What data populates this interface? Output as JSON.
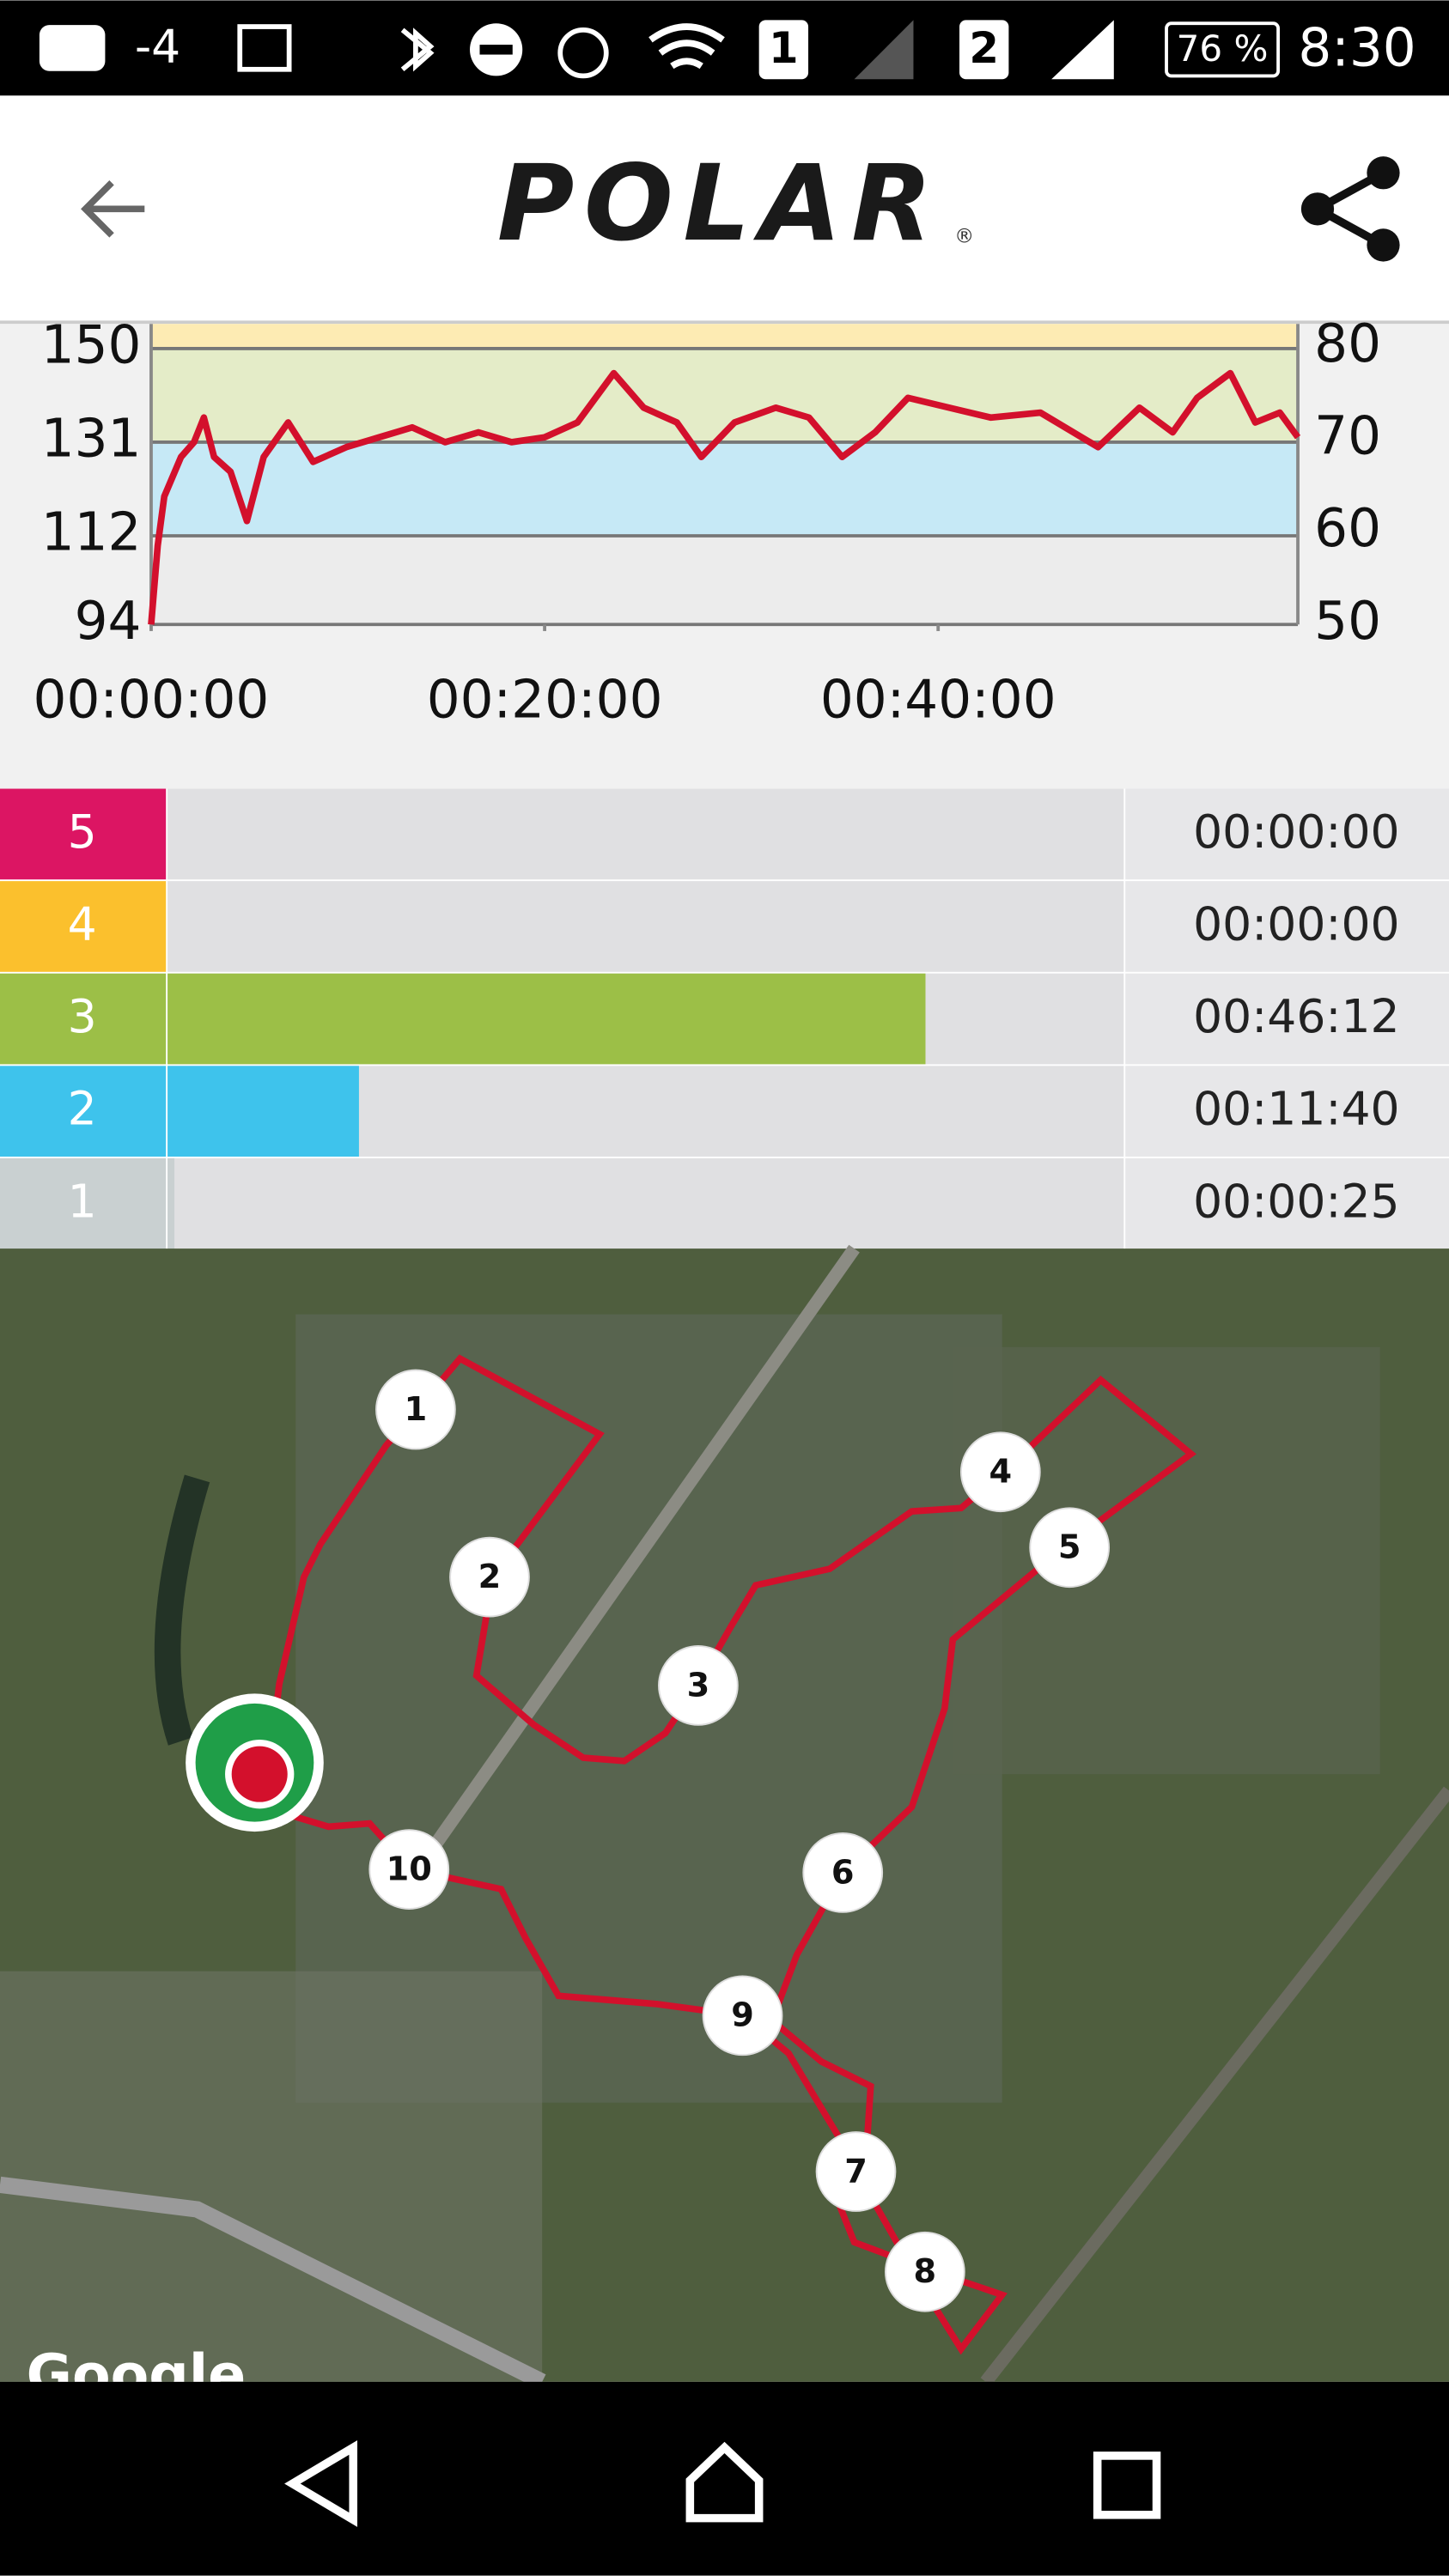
{
  "status_bar": {
    "temperature": "-4",
    "sim1": "1",
    "sim2": "2",
    "battery": "76 %",
    "time": "8:30"
  },
  "header": {
    "logo": "POLAR",
    "registered": "®"
  },
  "chart_data": [
    {
      "type": "line",
      "x": [
        0,
        20,
        40,
        91,
        131,
        161,
        192,
        242,
        292,
        343,
        418,
        494,
        595,
        696,
        796,
        897,
        998,
        1099,
        1200,
        1300,
        1411,
        1502,
        1603,
        1678,
        1779,
        1905,
        2006,
        2107,
        2208,
        2308,
        2434,
        2560,
        2712,
        2888,
        3014,
        3115,
        3190,
        3291,
        3367,
        3442,
        3497
      ],
      "values": [
        94,
        110,
        120,
        128,
        131,
        136,
        128,
        125,
        115,
        128,
        135,
        127,
        130,
        132,
        134,
        131,
        133,
        131,
        132,
        135,
        145,
        138,
        135,
        128,
        135,
        138,
        136,
        128,
        133,
        140,
        138,
        136,
        137,
        130,
        138,
        133,
        140,
        145,
        135,
        137,
        132
      ],
      "color": "#d3102c",
      "xlim": [
        0,
        3497
      ],
      "xticks": [
        {
          "value": 0,
          "label": "00:00:00"
        },
        {
          "value": 1200,
          "label": "00:20:00"
        },
        {
          "value": 2400,
          "label": "00:40:00"
        }
      ],
      "ylim": [
        94,
        155
      ],
      "yticks": [
        94,
        112,
        131,
        150
      ],
      "y2lim": [
        50,
        82.5
      ],
      "y2ticks": [
        50,
        60,
        70,
        80
      ],
      "band_colors": [
        "#ececec",
        "#c6e9f6",
        "#e4ecc8",
        "#fdebb3"
      ],
      "grid": true
    },
    {
      "type": "bar",
      "orientation": "horizontal",
      "categories": [
        "5",
        "4",
        "3",
        "2",
        "1"
      ],
      "values": [
        0,
        0,
        2772,
        700,
        25
      ],
      "value_labels": [
        "00:00:00",
        "00:00:00",
        "00:46:12",
        "00:11:40",
        "00:00:25"
      ],
      "colors": [
        "#dc1563",
        "#fbc02d",
        "#9cbf47",
        "#3ec3ec",
        "#c9d0d1"
      ],
      "xlim": [
        0,
        3497
      ]
    }
  ],
  "map": {
    "markers": [
      "1",
      "2",
      "3",
      "4",
      "5",
      "6",
      "7",
      "8",
      "9",
      "10"
    ],
    "attribution": "Google"
  }
}
